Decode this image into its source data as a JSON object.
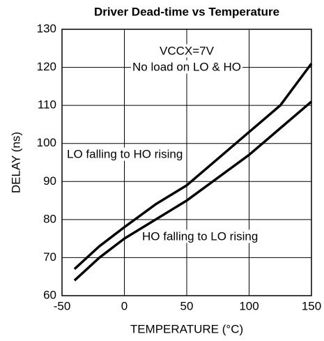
{
  "chart_data": {
    "type": "line",
    "title": "Driver Dead-time vs Temperature",
    "xlabel": "TEMPERATURE (°C)",
    "ylabel": "DELAY (ns)",
    "x": [
      -40,
      -20,
      0,
      25,
      50,
      75,
      100,
      125,
      150
    ],
    "series": [
      {
        "name": "LO falling to HO rising",
        "color": "#000000",
        "values": [
          67,
          73,
          78,
          84,
          89,
          96,
          103,
          110,
          121
        ]
      },
      {
        "name": "HO falling to LO rising",
        "color": "#000000",
        "values": [
          64,
          70,
          75,
          80,
          85,
          91,
          97,
          104,
          111
        ]
      }
    ],
    "annotations": [
      "VCCX=7V",
      "No load on LO & HO"
    ],
    "xlim": [
      -50,
      150
    ],
    "xticks": [
      -50,
      0,
      50,
      100,
      150
    ],
    "ylim": [
      60,
      130
    ],
    "yticks": [
      60,
      70,
      80,
      90,
      100,
      110,
      120,
      130
    ],
    "grid": true
  }
}
